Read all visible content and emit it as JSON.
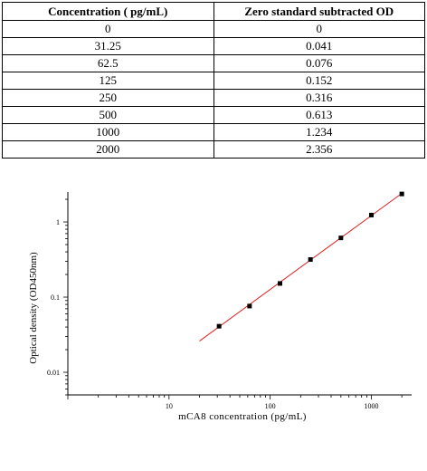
{
  "table": {
    "headers": [
      "Concentration ( pg/mL)",
      "Zero standard subtracted OD"
    ],
    "rows": [
      [
        "0",
        "0"
      ],
      [
        "31.25",
        "0.041"
      ],
      [
        "62.5",
        "0.076"
      ],
      [
        "125",
        "0.152"
      ],
      [
        "250",
        "0.316"
      ],
      [
        "500",
        "0.613"
      ],
      [
        "1000",
        "1.234"
      ],
      [
        "2000",
        "2.356"
      ]
    ]
  },
  "chart_data": {
    "type": "scatter",
    "xlabel": "mCA8 concentration (pg/mL)",
    "ylabel": "Optical density (OD450nm)",
    "x_scale": "log",
    "y_scale": "log",
    "xlim": [
      1,
      2500
    ],
    "ylim": [
      0.005,
      2.5
    ],
    "x_ticks": [
      10,
      100,
      1000
    ],
    "x_tick_labels": [
      "10",
      "100",
      "1000"
    ],
    "y_ticks": [
      0.01,
      0.1,
      1
    ],
    "y_tick_labels": [
      "0.01",
      "0.1",
      "1"
    ],
    "grid": false,
    "series": [
      {
        "x": [
          31.25,
          62.5,
          125,
          250,
          500,
          1000,
          2000
        ],
        "y": [
          0.041,
          0.076,
          0.152,
          0.316,
          0.613,
          1.234,
          2.356
        ]
      }
    ],
    "fit_line": {
      "x": [
        20,
        2000
      ],
      "y": [
        0.026,
        2.4
      ]
    },
    "colors": {
      "marker": "#000000",
      "fit_line": "#e02020",
      "axis": "#000000"
    }
  }
}
